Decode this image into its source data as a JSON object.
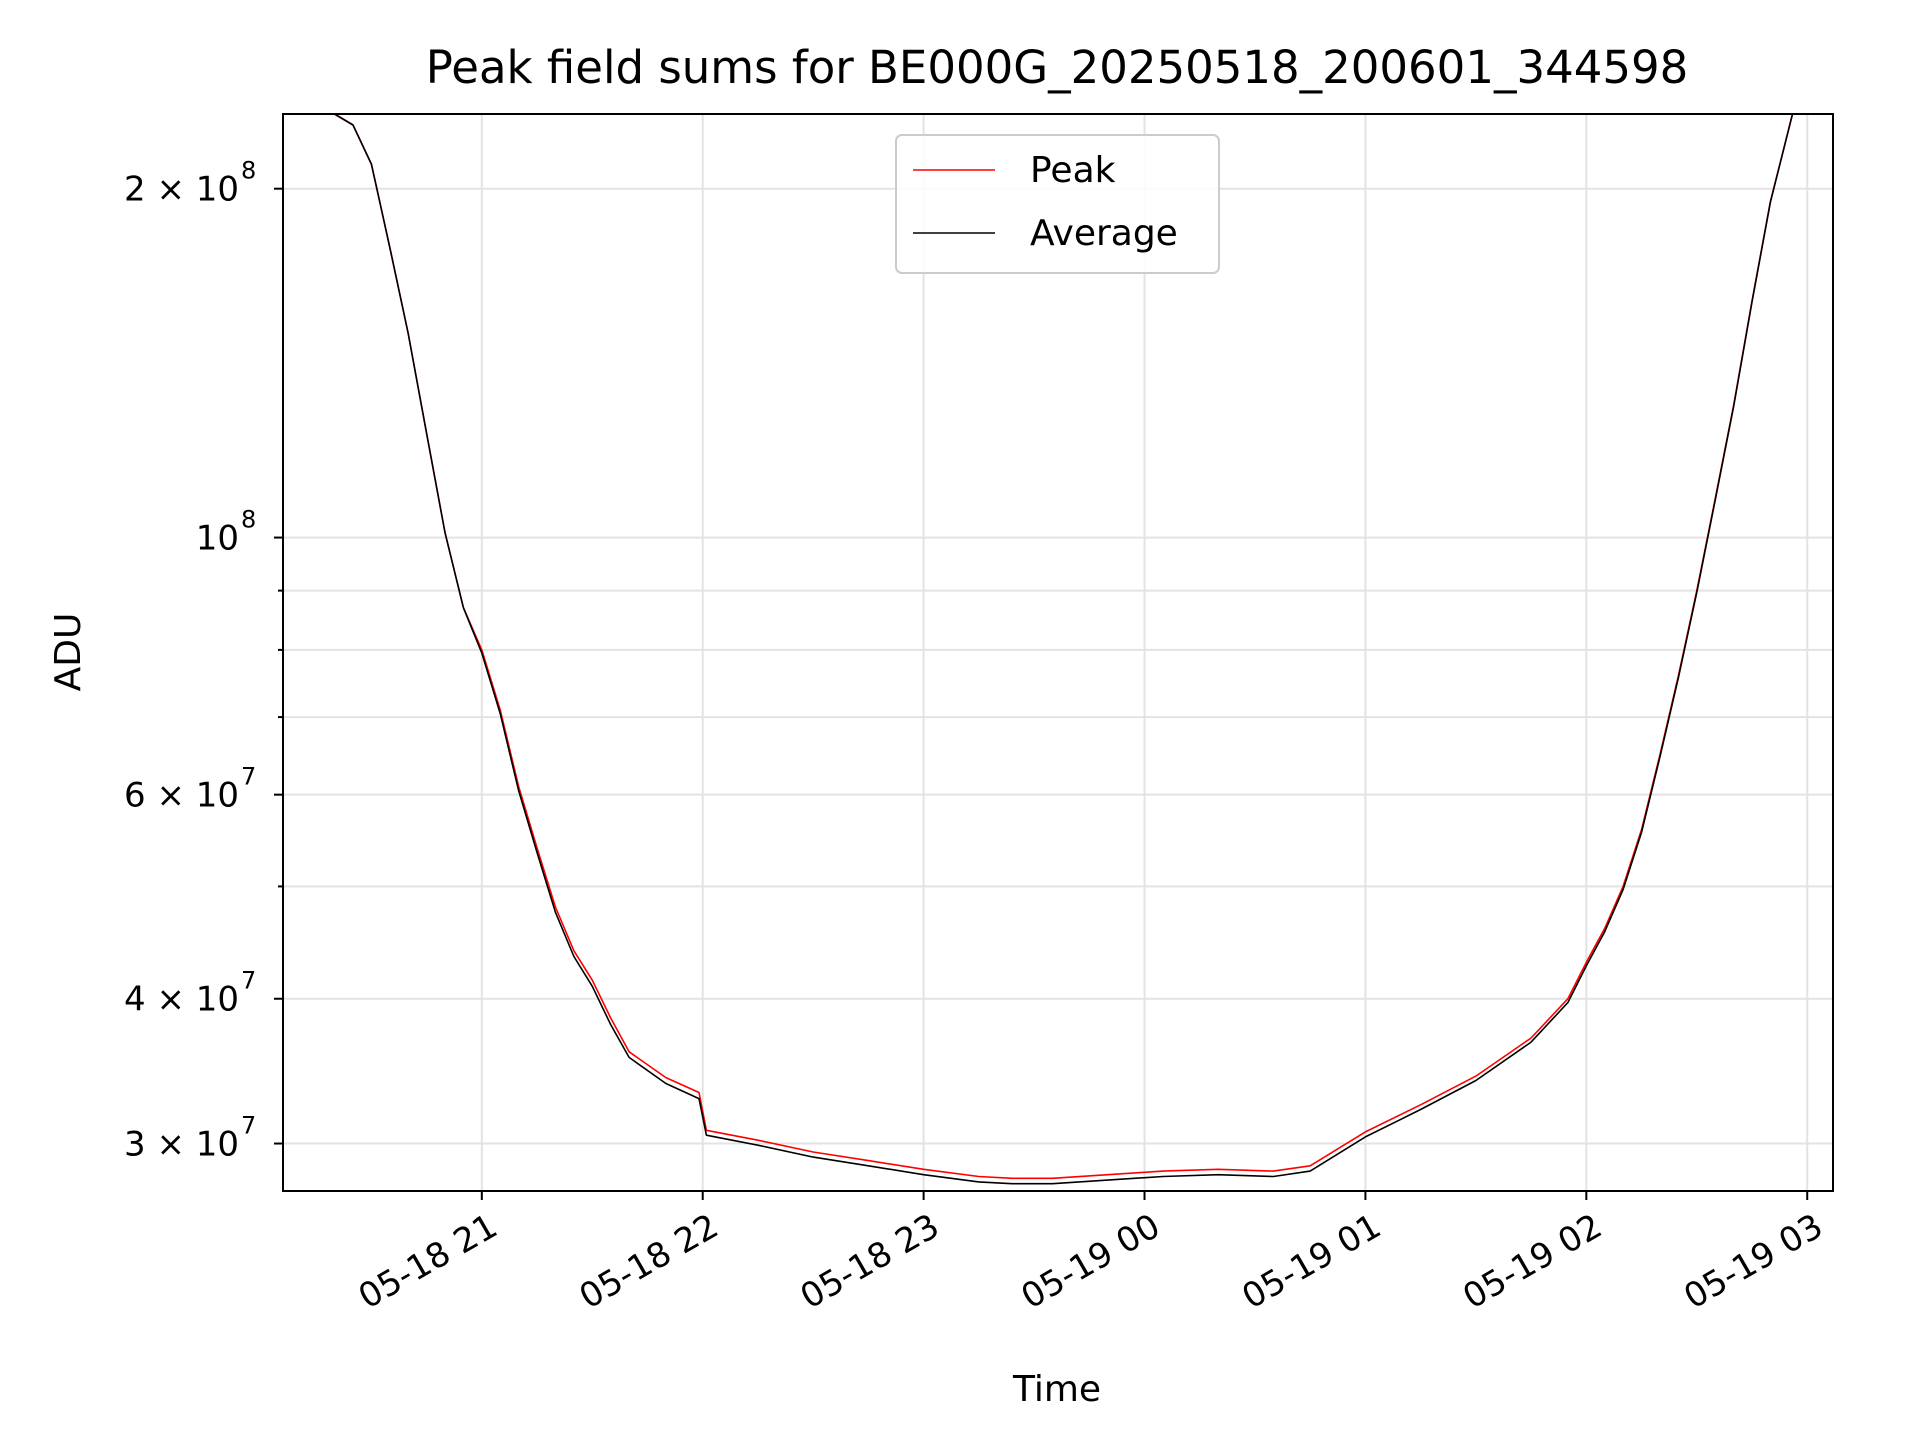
{
  "chart_data": {
    "type": "line",
    "title": "Peak field sums for BE000G_20250518_200601_344598",
    "xlabel": "Time",
    "ylabel": "ADU",
    "y_scale": "log",
    "ylim": [
      27300000,
      232000000
    ],
    "xlim": [
      "2025-05-18 20:06",
      "2025-05-19 03:07"
    ],
    "grid": true,
    "legend_position": "upper center",
    "x_ticks": [
      "05-18 21",
      "05-18 22",
      "05-18 23",
      "05-19 00",
      "05-19 01",
      "05-19 02",
      "05-19 03"
    ],
    "x_tick_times": [
      "2025-05-18 21:00",
      "2025-05-18 22:00",
      "2025-05-18 23:00",
      "2025-05-19 00:00",
      "2025-05-19 01:00",
      "2025-05-19 02:00",
      "2025-05-19 03:00"
    ],
    "y_major_ticks": [
      {
        "value": 200000000,
        "base": "2 × 10",
        "exp": "8"
      },
      {
        "value": 100000000,
        "base": "10",
        "exp": "8"
      },
      {
        "value": 60000000,
        "base": "6 × 10",
        "exp": "7"
      },
      {
        "value": 40000000,
        "base": "4 × 10",
        "exp": "7"
      },
      {
        "value": 30000000,
        "base": "3 × 10",
        "exp": "7"
      }
    ],
    "y_minor_ticks": [
      90000000,
      80000000,
      70000000,
      50000000
    ],
    "series": [
      {
        "name": "Peak",
        "color": "#ff0000",
        "x": [
          "2025-05-18 20:06",
          "2025-05-18 20:20",
          "2025-05-18 20:25",
          "2025-05-18 20:30",
          "2025-05-18 20:35",
          "2025-05-18 20:40",
          "2025-05-18 20:45",
          "2025-05-18 20:50",
          "2025-05-18 20:55",
          "2025-05-18 21:00",
          "2025-05-18 21:05",
          "2025-05-18 21:10",
          "2025-05-18 21:15",
          "2025-05-18 21:20",
          "2025-05-18 21:25",
          "2025-05-18 21:30",
          "2025-05-18 21:35",
          "2025-05-18 21:40",
          "2025-05-18 21:50",
          "2025-05-18 21:59",
          "2025-05-18 22:01",
          "2025-05-18 22:15",
          "2025-05-18 22:30",
          "2025-05-18 22:45",
          "2025-05-18 23:00",
          "2025-05-18 23:15",
          "2025-05-18 23:24",
          "2025-05-18 23:35",
          "2025-05-18 23:50",
          "2025-05-19 00:05",
          "2025-05-19 00:20",
          "2025-05-19 00:35",
          "2025-05-19 00:45",
          "2025-05-19 01:00",
          "2025-05-19 01:15",
          "2025-05-19 01:30",
          "2025-05-19 01:45",
          "2025-05-19 01:55",
          "2025-05-19 02:00",
          "2025-05-19 02:05",
          "2025-05-19 02:10",
          "2025-05-19 02:15",
          "2025-05-19 02:20",
          "2025-05-19 02:25",
          "2025-05-19 02:30",
          "2025-05-19 02:35",
          "2025-05-19 02:40",
          "2025-05-19 02:45",
          "2025-05-19 02:50",
          "2025-05-19 02:56",
          "2025-05-19 03:07"
        ],
        "values": [
          232000000,
          232000000,
          227000000,
          210000000,
          178000000,
          150000000,
          123000000,
          101000000,
          87000000,
          80000000,
          71000000,
          61000000,
          54000000,
          48000000,
          44000000,
          41500000,
          38500000,
          36000000,
          34200000,
          33200000,
          30800000,
          30200000,
          29500000,
          29000000,
          28500000,
          28100000,
          28000000,
          28000000,
          28200000,
          28400000,
          28500000,
          28400000,
          28700000,
          30700000,
          32400000,
          34300000,
          37000000,
          40000000,
          43000000,
          46000000,
          50000000,
          56000000,
          65000000,
          76000000,
          90000000,
          108000000,
          130000000,
          160000000,
          195000000,
          232000000,
          232000000
        ]
      },
      {
        "name": "Average",
        "color": "#000000",
        "x": [
          "2025-05-18 20:06",
          "2025-05-18 20:20",
          "2025-05-18 20:25",
          "2025-05-18 20:30",
          "2025-05-18 20:35",
          "2025-05-18 20:40",
          "2025-05-18 20:45",
          "2025-05-18 20:50",
          "2025-05-18 20:55",
          "2025-05-18 21:00",
          "2025-05-18 21:05",
          "2025-05-18 21:10",
          "2025-05-18 21:15",
          "2025-05-18 21:20",
          "2025-05-18 21:25",
          "2025-05-18 21:30",
          "2025-05-18 21:35",
          "2025-05-18 21:40",
          "2025-05-18 21:50",
          "2025-05-18 21:59",
          "2025-05-18 22:01",
          "2025-05-18 22:15",
          "2025-05-18 22:30",
          "2025-05-18 22:45",
          "2025-05-18 23:00",
          "2025-05-18 23:15",
          "2025-05-18 23:24",
          "2025-05-18 23:35",
          "2025-05-18 23:50",
          "2025-05-19 00:05",
          "2025-05-19 00:20",
          "2025-05-19 00:35",
          "2025-05-19 00:45",
          "2025-05-19 01:00",
          "2025-05-19 01:15",
          "2025-05-19 01:30",
          "2025-05-19 01:45",
          "2025-05-19 01:55",
          "2025-05-19 02:00",
          "2025-05-19 02:05",
          "2025-05-19 02:10",
          "2025-05-19 02:15",
          "2025-05-19 02:20",
          "2025-05-19 02:25",
          "2025-05-19 02:30",
          "2025-05-19 02:35",
          "2025-05-19 02:40",
          "2025-05-19 02:45",
          "2025-05-19 02:50",
          "2025-05-19 02:56",
          "2025-05-19 03:07"
        ],
        "values": [
          232000000,
          232000000,
          227000000,
          210000000,
          178000000,
          150000000,
          123000000,
          101000000,
          87000000,
          79500000,
          70500000,
          60500000,
          53500000,
          47500000,
          43500000,
          41000000,
          38000000,
          35600000,
          33800000,
          32800000,
          30500000,
          29900000,
          29200000,
          28700000,
          28200000,
          27800000,
          27700000,
          27700000,
          27900000,
          28100000,
          28200000,
          28100000,
          28400000,
          30400000,
          32100000,
          34000000,
          36700000,
          39700000,
          42700000,
          45700000,
          49700000,
          55700000,
          64700000,
          75700000,
          89700000,
          107700000,
          129700000,
          159700000,
          194700000,
          232000000,
          232000000
        ]
      }
    ]
  }
}
